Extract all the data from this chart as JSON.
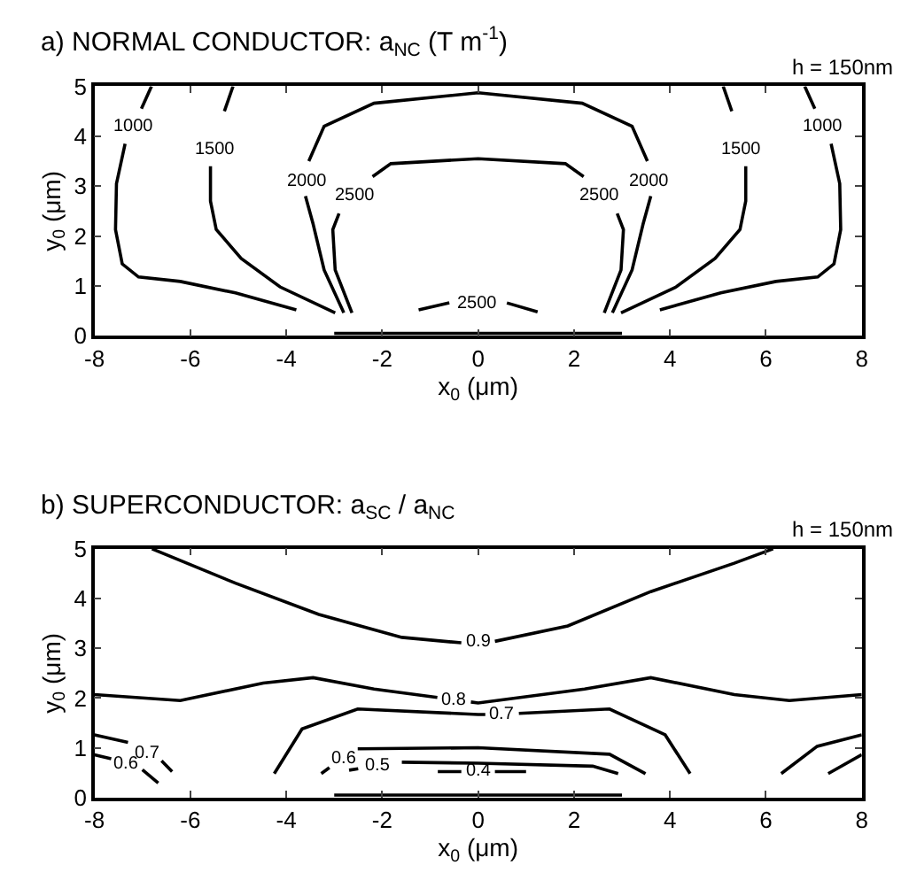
{
  "chart_data": [
    {
      "type": "line",
      "title": "a) NORMAL CONDUCTOR: a$_{NC}$ (T m$^{-1}$)",
      "xlabel": "x$_{0}$ (μm)",
      "ylabel": "y$_{0}$ (μm)",
      "xlim": [
        -8,
        8
      ],
      "ylim": [
        0,
        5
      ],
      "xticks": [
        -8,
        -6,
        -4,
        -2,
        0,
        2,
        4,
        6,
        8
      ],
      "yticks": [
        0,
        1,
        2,
        3,
        4,
        5
      ],
      "line_style": "solid",
      "marker": "none",
      "series": [
        {
          "name": "1000",
          "color": "#000000",
          "x": [
            -6.81,
            -7.02,
            -7.19,
            -7.36,
            -7.54,
            -7.56,
            -7.42,
            -7.08,
            -6.21,
            -5.06,
            -3.79
          ],
          "values": [
            5,
            4.55,
            null,
            3.85,
            3.05,
            2.13,
            1.44,
            1.18,
            1.09,
            0.86,
            0.52
          ]
        },
        {
          "name": "1000",
          "color": "#000000",
          "x": [
            6.81,
            7.02,
            7.19,
            7.36,
            7.54,
            7.56,
            7.42,
            7.08,
            6.21,
            5.06,
            3.79
          ],
          "values": [
            5,
            4.55,
            null,
            3.85,
            3.05,
            2.13,
            1.44,
            1.18,
            1.09,
            0.86,
            0.52
          ]
        },
        {
          "name": "1500",
          "color": "#000000",
          "x": [
            -5.11,
            -5.29,
            -5.49,
            -5.58,
            -5.58,
            -5.46,
            -4.94,
            -4.13,
            -2.98
          ],
          "values": [
            5,
            4.5,
            null,
            3.4,
            2.7,
            2.13,
            1.55,
            0.98,
            0.46
          ]
        },
        {
          "name": "1500",
          "color": "#000000",
          "x": [
            5.11,
            5.29,
            5.49,
            5.58,
            5.58,
            5.46,
            4.94,
            4.13,
            2.98
          ],
          "values": [
            5,
            4.5,
            null,
            3.4,
            2.7,
            2.13,
            1.55,
            0.98,
            0.46
          ]
        },
        {
          "name": "2000",
          "color": "#000000",
          "x": [
            -2.8,
            -3.21,
            -3.44,
            -3.6,
            -3.57,
            -3.53,
            -3.21,
            -2.17,
            0,
            2.17,
            3.21,
            3.53,
            3.57,
            3.6,
            3.44,
            3.21,
            2.8
          ],
          "values": [
            0.46,
            1.32,
            2.24,
            2.8,
            null,
            3.5,
            4.2,
            4.66,
            4.87,
            4.66,
            4.2,
            3.5,
            null,
            2.8,
            2.24,
            1.32,
            0.46
          ]
        },
        {
          "name": "2500",
          "color": "#000000",
          "x": [
            -2.63,
            -2.98,
            -3.03,
            -2.9,
            -2.55,
            -2.2,
            -1.82,
            0,
            1.82,
            2.2,
            2.55,
            2.9,
            3.03,
            2.98,
            2.63
          ],
          "values": [
            0.46,
            1.32,
            2.13,
            2.45,
            null,
            3.19,
            3.45,
            3.55,
            3.45,
            3.19,
            null,
            2.45,
            2.13,
            1.32,
            0.46
          ]
        },
        {
          "name": "2500",
          "color": "#000000",
          "x": [
            -1.24,
            -0.6,
            0,
            0.6,
            1.24
          ],
          "values": [
            0.52,
            0.66,
            null,
            0.66,
            0.48
          ]
        },
        {
          "color": "#000000",
          "x": [
            -3,
            3
          ],
          "values": [
            0.05,
            0.05
          ]
        }
      ],
      "annotations": [
        "h = 150nm"
      ]
    },
    {
      "type": "line",
      "title": "b) SUPERCONDUCTOR: a$_{SC}$ / a$_{NC}$",
      "xlabel": "x$_{0}$ (μm)",
      "ylabel": "y$_{0}$ (μm)",
      "xlim": [
        -8,
        8
      ],
      "ylim": [
        0,
        5
      ],
      "xticks": [
        -8,
        -6,
        -4,
        -2,
        0,
        2,
        4,
        6,
        8
      ],
      "yticks": [
        0,
        1,
        2,
        3,
        4,
        5
      ],
      "line_style": "solid",
      "marker": "none",
      "series": [
        {
          "name": "0.9",
          "color": "#000000",
          "x": [
            -6.8,
            -5.06,
            -3.32,
            -1.59,
            -0.35,
            0,
            0.35,
            1.87,
            3.6,
            5.34,
            6.15
          ],
          "values": [
            5,
            4.31,
            3.68,
            3.22,
            3.11,
            null,
            3.14,
            3.45,
            4.14,
            4.71,
            5
          ]
        },
        {
          "name": "0.8",
          "color": "#000000",
          "x": [
            -8,
            -6.21,
            -4.48,
            -3.44,
            -2.17,
            -0.85,
            -0.5,
            -0.15,
            0,
            2.22,
            3.6,
            5.34,
            6.49,
            8
          ],
          "values": [
            2.07,
            1.95,
            2.3,
            2.41,
            2.18,
            2.01,
            null,
            1.92,
            1.9,
            2.18,
            2.41,
            2.07,
            1.95,
            2.07
          ]
        },
        {
          "name": "0.7",
          "color": "#000000",
          "x": [
            -4.25,
            -3.67,
            -2.51,
            0,
            0.15,
            0.5,
            0.85,
            2.74,
            3.9,
            4.42
          ],
          "values": [
            0.48,
            1.38,
            1.78,
            1.67,
            1.67,
            null,
            1.69,
            1.78,
            1.26,
            0.48
          ]
        },
        {
          "name": "0.6",
          "color": "#000000",
          "x": [
            -3.27,
            -3.1,
            -2.8,
            -2.51,
            0,
            2.74,
            3.49
          ],
          "values": [
            0.48,
            0.6,
            null,
            0.98,
            1.0,
            0.87,
            0.48
          ]
        },
        {
          "name": "0.5",
          "color": "#000000",
          "x": [
            -2.69,
            -2.5,
            -2.1,
            -1.59,
            0,
            2.39,
            2.92
          ],
          "values": [
            0.55,
            0.58,
            null,
            0.71,
            0.69,
            0.63,
            0.48
          ]
        },
        {
          "name": "0.4",
          "color": "#000000",
          "x": [
            -0.84,
            -0.35,
            0,
            0.35,
            1.0
          ],
          "values": [
            0.52,
            0.52,
            null,
            0.52,
            0.52
          ]
        },
        {
          "name": "0.7",
          "color": "#000000",
          "x": [
            -8,
            -7.3,
            -6.9,
            -6.6,
            -6.38
          ],
          "values": [
            1.26,
            1.11,
            null,
            0.74,
            0.52
          ]
        },
        {
          "name": "0.6",
          "color": "#000000",
          "x": [
            -8,
            -7.65,
            -7.35,
            -7.0,
            -6.67
          ],
          "values": [
            0.86,
            0.78,
            null,
            0.56,
            0.29
          ]
        },
        {
          "color": "#000000",
          "x": [
            6.32,
            7.07,
            8
          ],
          "values": [
            0.48,
            1.03,
            1.26
          ]
        },
        {
          "color": "#000000",
          "x": [
            7.3,
            8
          ],
          "values": [
            0.48,
            0.86
          ]
        },
        {
          "color": "#000000",
          "x": [
            -3,
            3
          ],
          "values": [
            0.05,
            0.05
          ]
        }
      ],
      "annotations": [
        "h = 150nm"
      ]
    }
  ]
}
